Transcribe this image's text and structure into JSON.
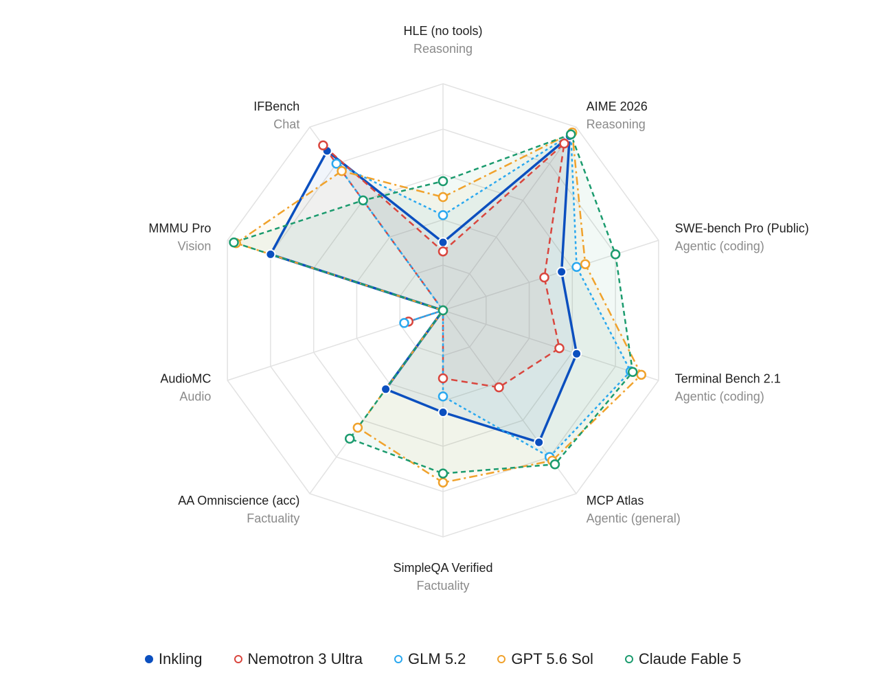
{
  "chart_data": {
    "type": "radar",
    "title": "",
    "range": [
      0,
      100
    ],
    "axes": [
      {
        "name": "HLE (no tools)",
        "category": "Reasoning"
      },
      {
        "name": "AIME 2026",
        "category": "Reasoning"
      },
      {
        "name": "SWE-bench Pro (Public)",
        "category": "Agentic (coding)"
      },
      {
        "name": "Terminal Bench 2.1",
        "category": "Agentic (coding)"
      },
      {
        "name": "MCP Atlas",
        "category": "Agentic (general)"
      },
      {
        "name": "SimpleQA Verified",
        "category": "Factuality"
      },
      {
        "name": "AA Omniscience (acc)",
        "category": "Factuality"
      },
      {
        "name": "AudioMC",
        "category": "Audio"
      },
      {
        "name": "MMMU Pro",
        "category": "Vision"
      },
      {
        "name": "IFBench",
        "category": "Chat"
      }
    ],
    "series": [
      {
        "name": "Inkling",
        "color": "#0b4fbf",
        "filled_marker": true,
        "dash": "",
        "width": 3.5,
        "values": [
          30,
          95,
          55,
          62,
          72,
          45,
          43,
          0,
          80,
          87
        ]
      },
      {
        "name": "Nemotron 3 Ultra",
        "color": "#d9463e",
        "filled_marker": false,
        "dash": "9,6",
        "width": 2.5,
        "values": [
          26,
          91,
          47,
          54,
          42,
          30,
          0,
          16,
          0,
          90
        ]
      },
      {
        "name": "GLM 5.2",
        "color": "#2aa8ef",
        "filled_marker": false,
        "dash": "4,4",
        "width": 2.5,
        "values": [
          42,
          96,
          62,
          87,
          80,
          38,
          0,
          18,
          0,
          80
        ]
      },
      {
        "name": "GPT 5.6 Sol",
        "color": "#f0a22c",
        "filled_marker": false,
        "dash": "12,5,3,5",
        "width": 2.5,
        "values": [
          50,
          97,
          66,
          92,
          82,
          76,
          64,
          0,
          96,
          76
        ]
      },
      {
        "name": "Claude Fable 5",
        "color": "#1b9b6e",
        "filled_marker": false,
        "dash": "7,5",
        "width": 2.5,
        "values": [
          57,
          96,
          80,
          88,
          84,
          72,
          70,
          0,
          97,
          60
        ]
      }
    ],
    "legend_position": "bottom",
    "grid": true
  }
}
